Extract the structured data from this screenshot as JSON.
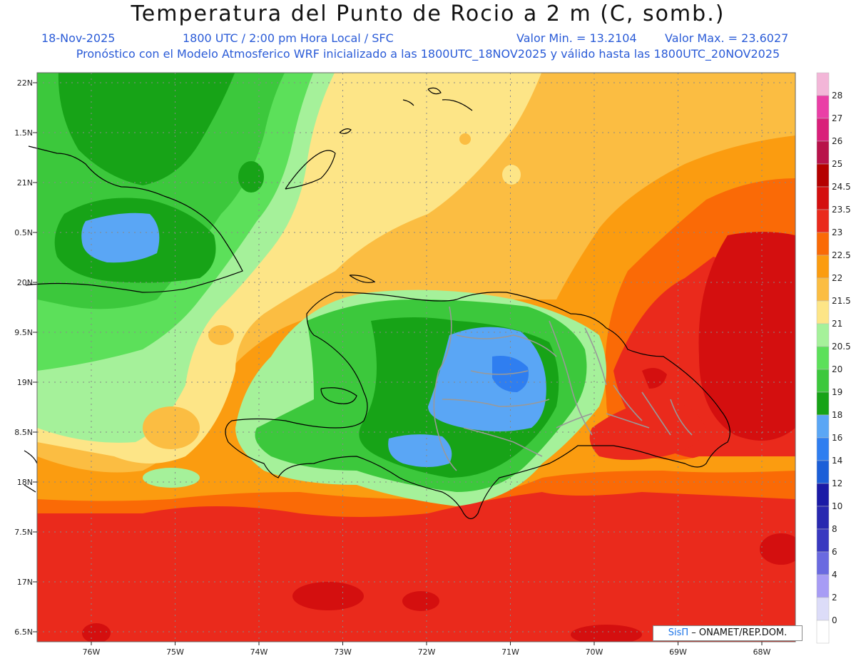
{
  "title": "Temperatura del Punto de Rocio a 2 m (C, somb.)",
  "header": {
    "date": "18-Nov-2025",
    "time": "1800 UTC / 2:00 pm Hora Local / SFC",
    "min": "Valor Min. = 13.2104",
    "max": "Valor Max. = 23.6027",
    "model_line": "Pronóstico con el Modelo Atmosferico WRF inicializado a las 1800UTC_18NOV2025 y válido hasta las  1800UTC_20NOV2025"
  },
  "axes": {
    "lat_labels": [
      "22N",
      "1.5N",
      "21N",
      "0.5N",
      "20N",
      "9.5N",
      "19N",
      "8.5N",
      "18N",
      "7.5N",
      "17N",
      "6.5N"
    ],
    "lon_labels": [
      "76W",
      "75W",
      "74W",
      "73W",
      "72W",
      "71W",
      "70W",
      "69W",
      "68W"
    ]
  },
  "legend": {
    "labels": [
      "28",
      "27",
      "26",
      "25",
      "24.5",
      "23.5",
      "23",
      "22.5",
      "22",
      "21.5",
      "21",
      "20.5",
      "20",
      "19",
      "18",
      "16",
      "14",
      "12",
      "10",
      "8",
      "6",
      "4",
      "2",
      "0"
    ],
    "colors": [
      "#f3b6d8",
      "#ea3fa6",
      "#d91f7a",
      "#b8124a",
      "#b50000",
      "#d40f0f",
      "#ea2a1c",
      "#fa6a06",
      "#fb9c10",
      "#fbbd42",
      "#fde587",
      "#a5f19a",
      "#5ce05a",
      "#3cc83c",
      "#17a317",
      "#5aa6f5",
      "#2f7ef0",
      "#1c5fd8",
      "#1a1aa6",
      "#2828b0",
      "#3838c0",
      "#6a6ae0",
      "#a79cf5",
      "#dcdcf8",
      "#ffffff"
    ]
  },
  "credit": {
    "brand": "SisΠ",
    "text": "– ONAMET/REP.DOM."
  },
  "colors": {
    "green_dark": "#17a317",
    "green": "#3cc83c",
    "green_light": "#5ce05a",
    "green_pale": "#a5f19a",
    "yellow": "#fde587",
    "orange_light": "#fbbd42",
    "orange": "#fb9c10",
    "orange_red": "#fa6a06",
    "red": "#ea2a1c",
    "red_dark": "#d40f0f",
    "blue_light": "#5aa6f5",
    "blue": "#2f7ef0"
  }
}
